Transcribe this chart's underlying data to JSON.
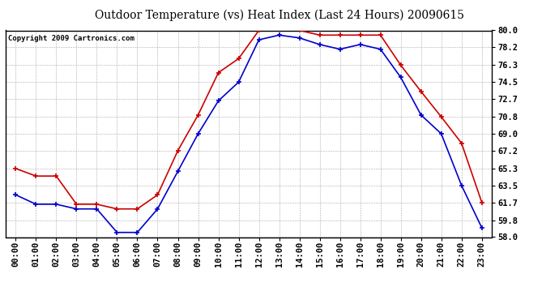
{
  "title": "Outdoor Temperature (vs) Heat Index (Last 24 Hours) 20090615",
  "copyright": "Copyright 2009 Cartronics.com",
  "hours": [
    "00:00",
    "01:00",
    "02:00",
    "03:00",
    "04:00",
    "05:00",
    "06:00",
    "07:00",
    "08:00",
    "09:00",
    "10:00",
    "11:00",
    "12:00",
    "13:00",
    "14:00",
    "15:00",
    "16:00",
    "17:00",
    "18:00",
    "19:00",
    "20:00",
    "21:00",
    "22:00",
    "23:00"
  ],
  "temp": [
    62.5,
    61.5,
    61.5,
    61.0,
    61.0,
    58.5,
    58.5,
    61.0,
    65.0,
    69.0,
    72.5,
    74.5,
    79.0,
    79.5,
    79.2,
    78.5,
    78.0,
    78.5,
    78.0,
    75.0,
    71.0,
    69.0,
    63.5,
    59.0
  ],
  "heat_index": [
    65.3,
    64.5,
    64.5,
    61.5,
    61.5,
    61.0,
    61.0,
    62.5,
    67.2,
    71.0,
    75.5,
    77.0,
    80.0,
    80.8,
    80.0,
    79.5,
    79.5,
    79.5,
    79.5,
    76.3,
    73.5,
    70.8,
    68.0,
    61.7
  ],
  "ylim_min": 58.0,
  "ylim_max": 80.0,
  "yticks": [
    58.0,
    59.8,
    61.7,
    63.5,
    65.3,
    67.2,
    69.0,
    70.8,
    72.7,
    74.5,
    76.3,
    78.2,
    80.0
  ],
  "temp_color": "#0000cc",
  "heat_index_color": "#cc0000",
  "background_color": "#ffffff",
  "grid_color": "#aaaaaa",
  "title_fontsize": 10,
  "copyright_fontsize": 6.5,
  "tick_fontsize": 7.5
}
